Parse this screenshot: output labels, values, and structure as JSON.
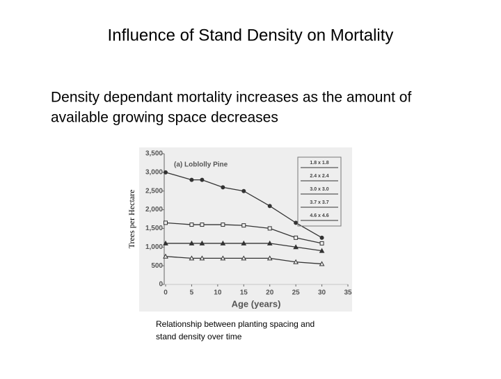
{
  "slide": {
    "title": "Influence of Stand Density on Mortality",
    "text": [
      "Density dependant mortality increases as the amount of",
      "available growing space decreases"
    ],
    "caption": [
      "Relationship between planting spacing and",
      "stand density over time"
    ]
  },
  "chart_data": {
    "type": "line",
    "title": "(a) Loblolly Pine",
    "x_label": "Age (years)",
    "y_label": "Trees per Hectare",
    "x": [
      0,
      5,
      7,
      11,
      15,
      20,
      25,
      30
    ],
    "series": [
      {
        "name": "1.8 x 1.8",
        "color": "#333333",
        "marker": "circle",
        "values": [
          3000,
          2800,
          2800,
          2600,
          2500,
          2100,
          1650,
          1250
        ]
      },
      {
        "name": "2.4 x 2.4",
        "color": "#333333",
        "marker": "square",
        "values": [
          1650,
          1600,
          1600,
          1600,
          1580,
          1500,
          1250,
          1100
        ]
      },
      {
        "name": "3.0 x 3.0",
        "color": "#333333",
        "marker": "triangle",
        "values": [
          1100,
          1100,
          1100,
          1100,
          1100,
          1100,
          1000,
          900
        ]
      },
      {
        "name": "3.7 x 3.7",
        "color": "#333333",
        "marker": "triangle-open",
        "values": [
          750,
          700,
          700,
          700,
          700,
          700,
          600,
          550
        ]
      },
      {
        "name": "4.6 x 4.6",
        "color": "#333333",
        "marker": "none",
        "values": [
          null,
          null,
          null,
          null,
          null,
          null,
          null,
          null
        ]
      }
    ],
    "xlim": [
      0,
      35
    ],
    "xticks": [
      0,
      5,
      10,
      15,
      20,
      25,
      30,
      35
    ],
    "ylim": [
      0,
      3500
    ],
    "yticks": [
      0,
      {
        "value": 500,
        "label": "500"
      },
      {
        "value": 1000,
        "label": "1,000"
      },
      {
        "value": 1500,
        "label": "1,500"
      },
      {
        "value": 2000,
        "label": "2,000"
      },
      {
        "value": 2500,
        "label": "2,500"
      },
      {
        "value": 3000,
        "label": "3,000"
      },
      {
        "value": 3500,
        "label": "3,500"
      }
    ],
    "legend": "upper right"
  }
}
